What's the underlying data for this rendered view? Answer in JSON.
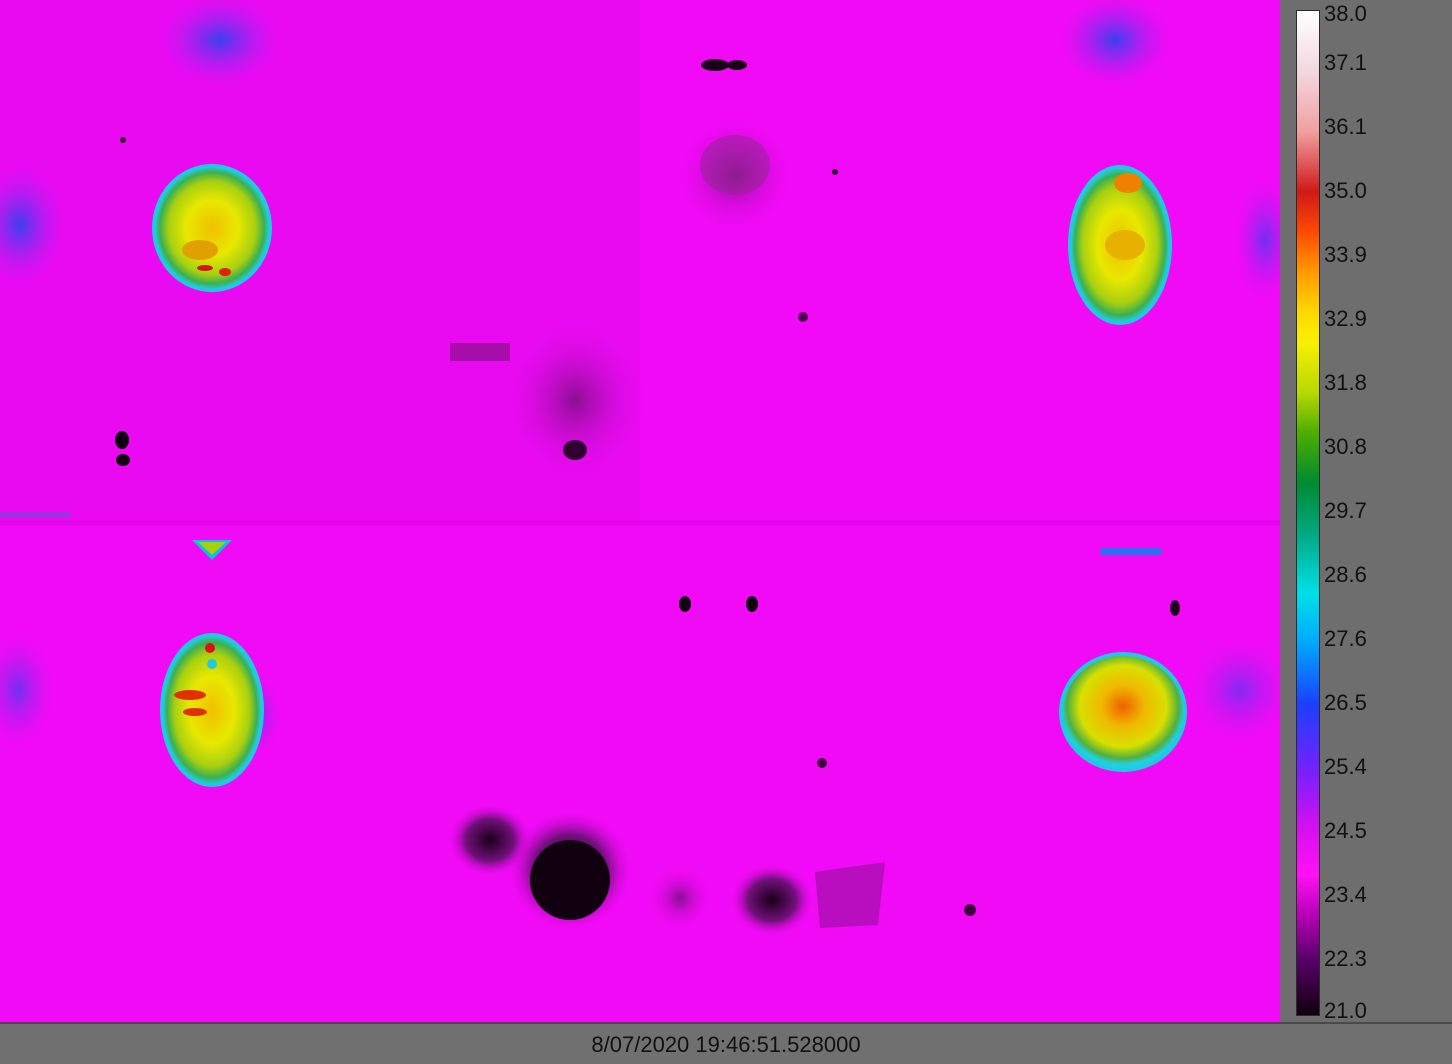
{
  "thermal_image": {
    "background_color": "#f00af5",
    "subjects": [
      "mouse-top-left",
      "mouse-top-right",
      "mouse-bottom-left",
      "mouse-bottom-right"
    ]
  },
  "scale": {
    "unit": "",
    "ticks": [
      "38.0",
      "37.1",
      "36.1",
      "35.0",
      "33.9",
      "32.9",
      "31.8",
      "30.8",
      "29.7",
      "28.6",
      "27.6",
      "26.5",
      "25.4",
      "24.5",
      "23.4",
      "22.3",
      "21.0"
    ]
  },
  "status_bar": {
    "timestamp": "8/07/2020 19:46:51.528000"
  }
}
